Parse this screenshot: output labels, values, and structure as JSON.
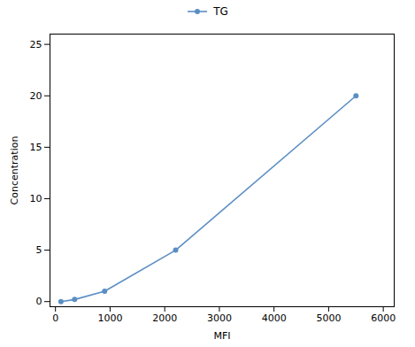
{
  "chart_data": {
    "type": "line",
    "x": [
      100,
      350,
      900,
      2200,
      5500
    ],
    "series": [
      {
        "name": "TG",
        "color": "#5b8ec4",
        "values": [
          0.0,
          0.2,
          1.0,
          5.0,
          20.0
        ],
        "marker": "circle"
      }
    ],
    "xlabel": "MFI",
    "ylabel": "Concentration",
    "xlim": [
      -100,
      6200
    ],
    "ylim": [
      -0.5,
      26
    ],
    "xticks": [
      0,
      1000,
      2000,
      3000,
      4000,
      5000,
      6000
    ],
    "yticks": [
      0,
      5,
      10,
      15,
      20,
      25
    ],
    "legend": "top",
    "grid": false
  }
}
